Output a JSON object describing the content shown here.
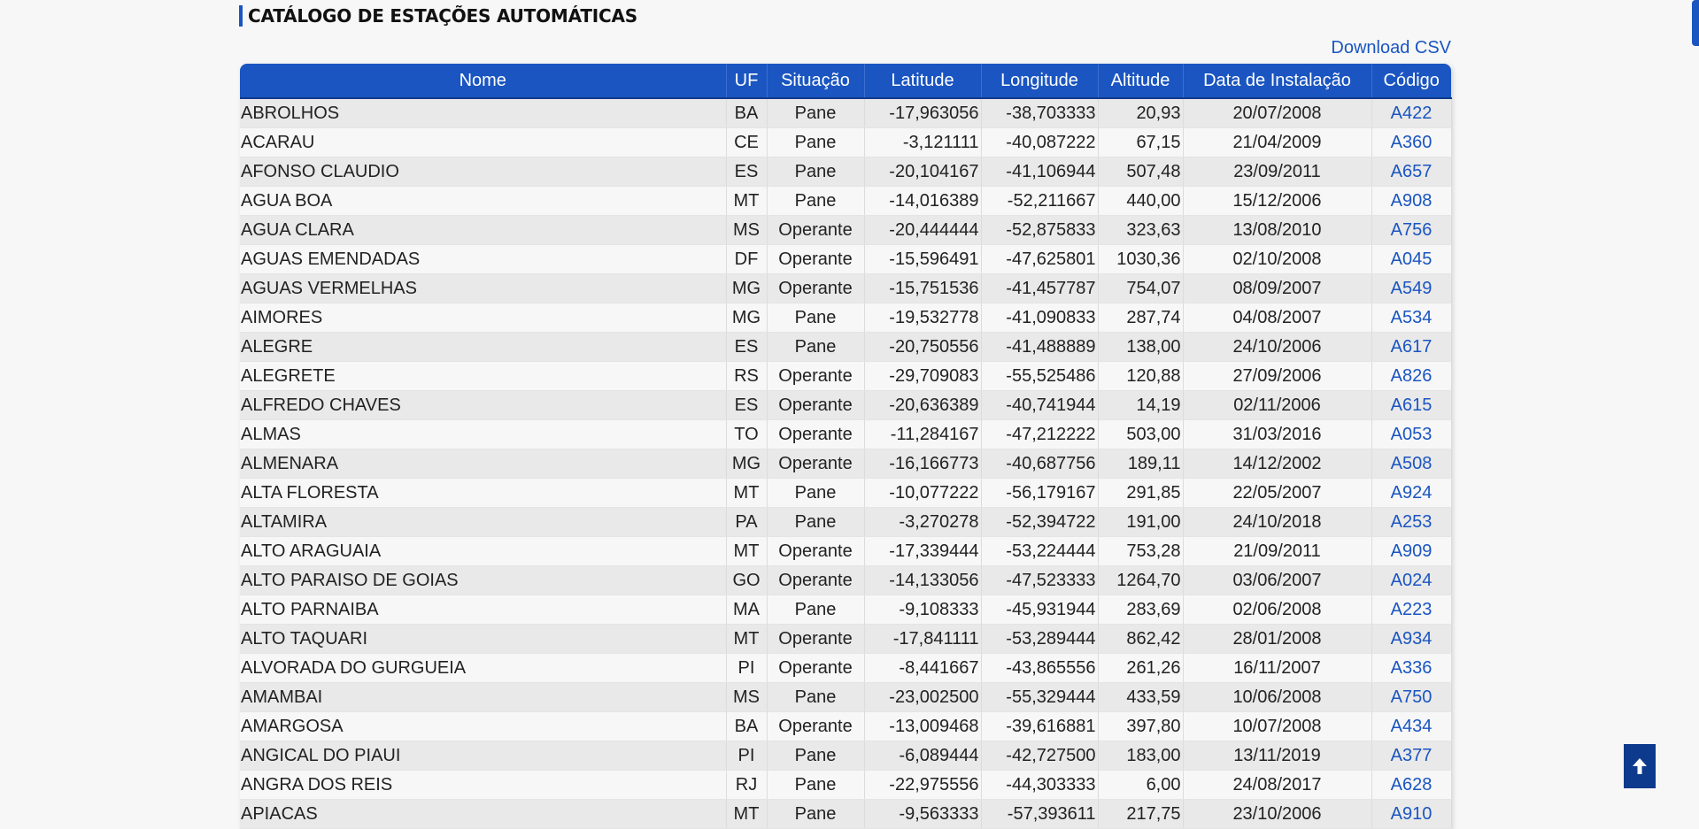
{
  "header": {
    "title": "CATÁLOGO DE ESTAÇÕES AUTOMÁTICAS",
    "download_label": "Download CSV"
  },
  "table": {
    "columns": [
      "Nome",
      "UF",
      "Situação",
      "Latitude",
      "Longitude",
      "Altitude",
      "Data de Instalação",
      "Código"
    ],
    "rows": [
      [
        "ABROLHOS",
        "BA",
        "Pane",
        "-17,963056",
        "-38,703333",
        "20,93",
        "20/07/2008",
        "A422"
      ],
      [
        "ACARAU",
        "CE",
        "Pane",
        "-3,121111",
        "-40,087222",
        "67,15",
        "21/04/2009",
        "A360"
      ],
      [
        "AFONSO CLAUDIO",
        "ES",
        "Pane",
        "-20,104167",
        "-41,106944",
        "507,48",
        "23/09/2011",
        "A657"
      ],
      [
        "AGUA BOA",
        "MT",
        "Pane",
        "-14,016389",
        "-52,211667",
        "440,00",
        "15/12/2006",
        "A908"
      ],
      [
        "AGUA CLARA",
        "MS",
        "Operante",
        "-20,444444",
        "-52,875833",
        "323,63",
        "13/08/2010",
        "A756"
      ],
      [
        "AGUAS EMENDADAS",
        "DF",
        "Operante",
        "-15,596491",
        "-47,625801",
        "1030,36",
        "02/10/2008",
        "A045"
      ],
      [
        "AGUAS VERMELHAS",
        "MG",
        "Operante",
        "-15,751536",
        "-41,457787",
        "754,07",
        "08/09/2007",
        "A549"
      ],
      [
        "AIMORES",
        "MG",
        "Pane",
        "-19,532778",
        "-41,090833",
        "287,74",
        "04/08/2007",
        "A534"
      ],
      [
        "ALEGRE",
        "ES",
        "Pane",
        "-20,750556",
        "-41,488889",
        "138,00",
        "24/10/2006",
        "A617"
      ],
      [
        "ALEGRETE",
        "RS",
        "Operante",
        "-29,709083",
        "-55,525486",
        "120,88",
        "27/09/2006",
        "A826"
      ],
      [
        "ALFREDO CHAVES",
        "ES",
        "Operante",
        "-20,636389",
        "-40,741944",
        "14,19",
        "02/11/2006",
        "A615"
      ],
      [
        "ALMAS",
        "TO",
        "Operante",
        "-11,284167",
        "-47,212222",
        "503,00",
        "31/03/2016",
        "A053"
      ],
      [
        "ALMENARA",
        "MG",
        "Operante",
        "-16,166773",
        "-40,687756",
        "189,11",
        "14/12/2002",
        "A508"
      ],
      [
        "ALTA FLORESTA",
        "MT",
        "Pane",
        "-10,077222",
        "-56,179167",
        "291,85",
        "22/05/2007",
        "A924"
      ],
      [
        "ALTAMIRA",
        "PA",
        "Pane",
        "-3,270278",
        "-52,394722",
        "191,00",
        "24/10/2018",
        "A253"
      ],
      [
        "ALTO ARAGUAIA",
        "MT",
        "Operante",
        "-17,339444",
        "-53,224444",
        "753,28",
        "21/09/2011",
        "A909"
      ],
      [
        "ALTO PARAISO DE GOIAS",
        "GO",
        "Operante",
        "-14,133056",
        "-47,523333",
        "1264,70",
        "03/06/2007",
        "A024"
      ],
      [
        "ALTO PARNAIBA",
        "MA",
        "Pane",
        "-9,108333",
        "-45,931944",
        "283,69",
        "02/06/2008",
        "A223"
      ],
      [
        "ALTO TAQUARI",
        "MT",
        "Operante",
        "-17,841111",
        "-53,289444",
        "862,42",
        "28/01/2008",
        "A934"
      ],
      [
        "ALVORADA DO GURGUEIA",
        "PI",
        "Operante",
        "-8,441667",
        "-43,865556",
        "261,26",
        "16/11/2007",
        "A336"
      ],
      [
        "AMAMBAI",
        "MS",
        "Pane",
        "-23,002500",
        "-55,329444",
        "433,59",
        "10/06/2008",
        "A750"
      ],
      [
        "AMARGOSA",
        "BA",
        "Operante",
        "-13,009468",
        "-39,616881",
        "397,80",
        "10/07/2008",
        "A434"
      ],
      [
        "ANGICAL DO PIAUI",
        "PI",
        "Pane",
        "-6,089444",
        "-42,727500",
        "183,00",
        "13/11/2019",
        "A377"
      ],
      [
        "ANGRA DOS REIS",
        "RJ",
        "Pane",
        "-22,975556",
        "-44,303333",
        "6,00",
        "24/08/2017",
        "A628"
      ],
      [
        "APIACAS",
        "MT",
        "Pane",
        "-9,563333",
        "-57,393611",
        "217,75",
        "23/10/2006",
        "A910"
      ]
    ]
  },
  "scroll_top": {
    "icon": "arrow-up-icon"
  },
  "colors": {
    "accent": "#1a55c1",
    "dark_accent": "#0d3a8c",
    "link": "#1a55c1"
  }
}
